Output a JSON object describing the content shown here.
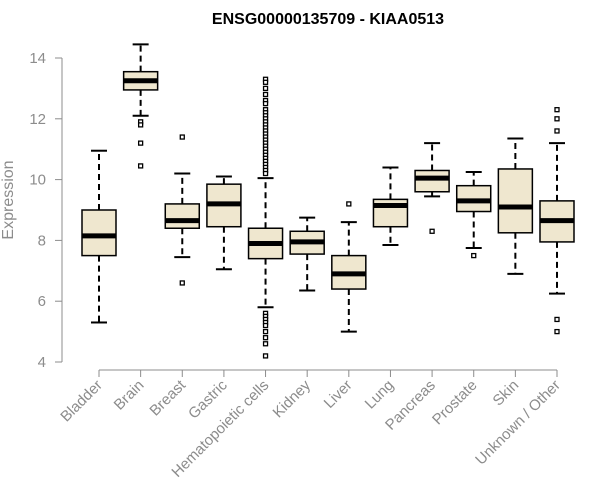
{
  "chart_data": {
    "type": "boxplot",
    "title": "ENSG00000135709 - KIAA0513",
    "ylabel": "Expression",
    "xlabel": "",
    "ylim": [
      4,
      14.5
    ],
    "yticks": [
      4,
      6,
      8,
      10,
      12,
      14
    ],
    "grid": false,
    "colors": {
      "box_fill": "#efe7cf",
      "box_stroke": "#000000",
      "axis": "#8c8c8c"
    },
    "categories": [
      "Bladder",
      "Brain",
      "Breast",
      "Gastric",
      "Hematopoietic cells",
      "Kidney",
      "Liver",
      "Lung",
      "Pancreas",
      "Prostate",
      "Skin",
      "Unknown / Other"
    ],
    "boxes": [
      {
        "category": "Bladder",
        "whisker_low": 5.3,
        "q1": 7.5,
        "median": 8.15,
        "q3": 9.0,
        "whisker_high": 10.95,
        "outliers": []
      },
      {
        "category": "Brain",
        "whisker_low": 12.1,
        "q1": 12.95,
        "median": 13.25,
        "q3": 13.55,
        "whisker_high": 14.45,
        "outliers": [
          11.9,
          11.8,
          11.2,
          10.45
        ]
      },
      {
        "category": "Breast",
        "whisker_low": 7.45,
        "q1": 8.4,
        "median": 8.65,
        "q3": 9.2,
        "whisker_high": 10.2,
        "outliers": [
          11.4,
          6.6
        ]
      },
      {
        "category": "Gastric",
        "whisker_low": 7.05,
        "q1": 8.45,
        "median": 9.2,
        "q3": 9.85,
        "whisker_high": 10.1,
        "outliers": []
      },
      {
        "category": "Hematopoietic cells",
        "whisker_low": 5.8,
        "q1": 7.4,
        "median": 7.9,
        "q3": 8.4,
        "whisker_high": 10.05,
        "outliers": [
          13.3,
          13.2,
          13.0,
          12.8,
          12.6,
          12.5,
          12.3,
          12.2,
          12.1,
          12.0,
          11.9,
          11.8,
          11.7,
          11.6,
          11.5,
          11.4,
          11.3,
          11.2,
          11.1,
          11.0,
          10.9,
          10.8,
          10.7,
          10.6,
          10.5,
          10.4,
          10.3,
          10.2,
          5.6,
          5.5,
          5.4,
          5.3,
          5.2,
          5.0,
          4.8,
          4.6,
          4.2
        ]
      },
      {
        "category": "Kidney",
        "whisker_low": 6.35,
        "q1": 7.55,
        "median": 7.95,
        "q3": 8.3,
        "whisker_high": 8.75,
        "outliers": []
      },
      {
        "category": "Liver",
        "whisker_low": 5.0,
        "q1": 6.4,
        "median": 6.9,
        "q3": 7.5,
        "whisker_high": 8.6,
        "outliers": [
          9.2
        ]
      },
      {
        "category": "Lung",
        "whisker_low": 7.85,
        "q1": 8.45,
        "median": 9.15,
        "q3": 9.35,
        "whisker_high": 10.4,
        "outliers": []
      },
      {
        "category": "Pancreas",
        "whisker_low": 9.45,
        "q1": 9.6,
        "median": 10.05,
        "q3": 10.3,
        "whisker_high": 11.2,
        "outliers": [
          8.3
        ]
      },
      {
        "category": "Prostate",
        "whisker_low": 7.75,
        "q1": 8.95,
        "median": 9.3,
        "q3": 9.8,
        "whisker_high": 10.25,
        "outliers": [
          7.5
        ]
      },
      {
        "category": "Skin",
        "whisker_low": 6.9,
        "q1": 8.25,
        "median": 9.1,
        "q3": 10.35,
        "whisker_high": 11.35,
        "outliers": []
      },
      {
        "category": "Unknown / Other",
        "whisker_low": 6.25,
        "q1": 7.95,
        "median": 8.65,
        "q3": 9.3,
        "whisker_high": 11.2,
        "outliers": [
          12.3,
          12.0,
          11.6,
          5.4,
          5.0
        ]
      }
    ]
  }
}
